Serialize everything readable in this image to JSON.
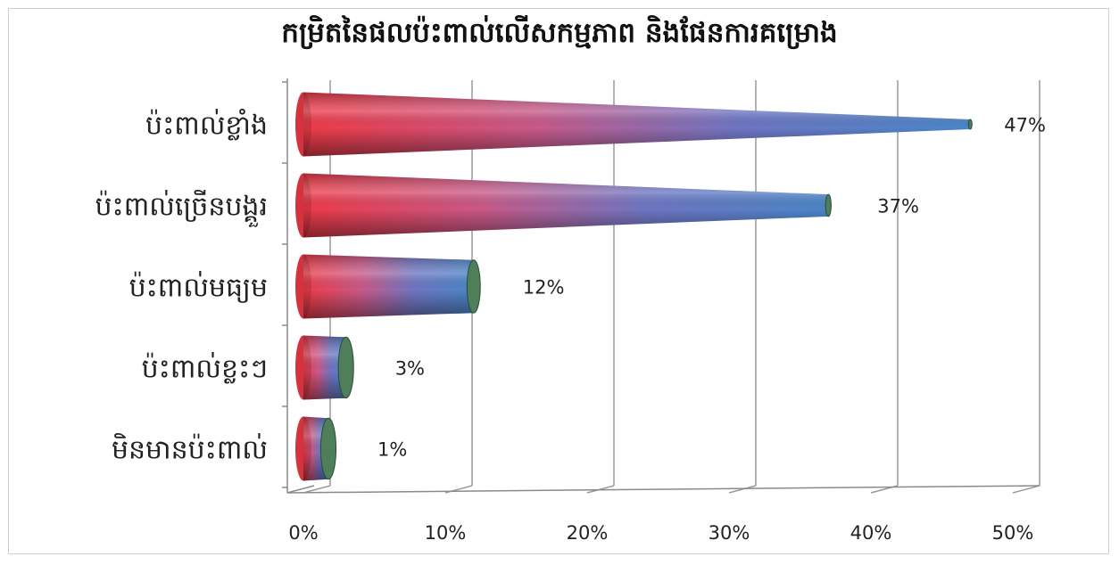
{
  "chart_data": {
    "type": "bar",
    "orientation": "horizontal",
    "style": "3d-cone",
    "title": "កម្រិតនៃផលប៉ះពាល់លើសកម្មភាព និងផែនការគម្រោង",
    "xlabel": "",
    "ylabel": "",
    "categories": [
      "ប៉ះពាល់ខ្លាំង",
      "ប៉ះពាល់ច្រើនបង្គួរ",
      "ប៉ះពាល់មធ្យម",
      "ប៉ះពាល់ខ្លះៗ",
      "មិនមានប៉ះពាល់"
    ],
    "values": [
      47,
      37,
      12,
      3,
      1
    ],
    "data_labels": [
      "47%",
      "37%",
      "12%",
      "3%",
      "1%"
    ],
    "xlim": [
      0,
      50
    ],
    "x_ticks": [
      "0%",
      "10%",
      "20%",
      "30%",
      "40%",
      "50%"
    ],
    "grid": true,
    "legend": "none",
    "colors": {
      "base": "#ef3b48",
      "tip": "#4a86c8",
      "end": "#4f7f5a"
    }
  }
}
